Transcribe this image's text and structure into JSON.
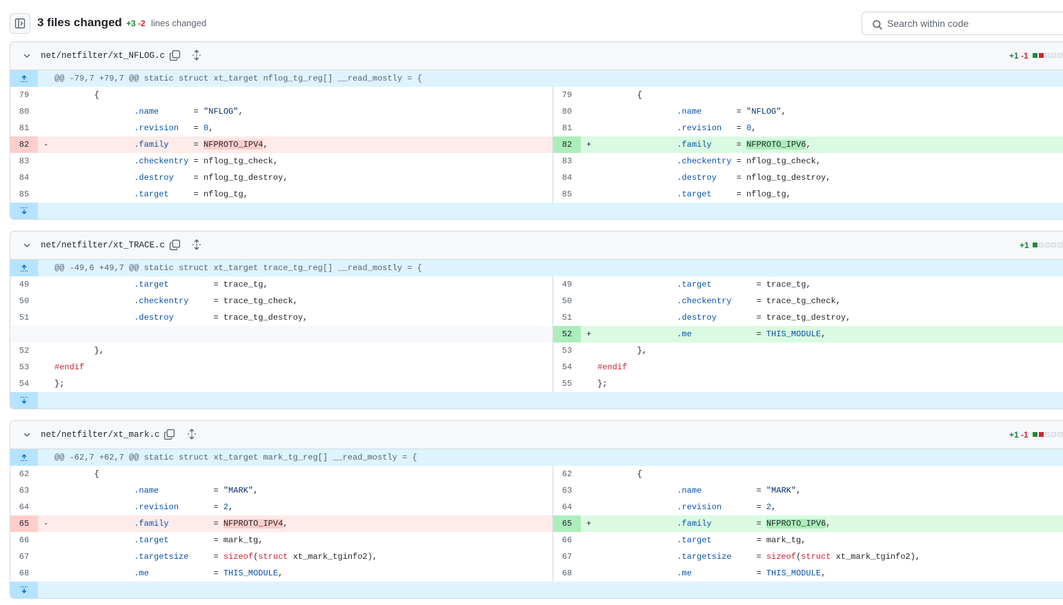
{
  "toolbar": {
    "files_changed": "3 files changed",
    "additions": "+3",
    "deletions": "-2",
    "lines_changed_label": "lines changed",
    "search_placeholder": "Search within code"
  },
  "colors": {
    "added": "#1f883d",
    "deleted": "#d1242f",
    "hunk": "#ddf4ff"
  },
  "files": [
    {
      "name": "net/netfilter/xt_NFLOG.c",
      "stat_add": "+1",
      "stat_del": "-1",
      "blocks": [
        "added",
        "deleted",
        "neutral",
        "neutral",
        "neutral"
      ],
      "hunk": "@@ -79,7 +79,7 @@ static struct xt_target nflog_tg_reg[] __read_mostly = {",
      "rows": [
        {
          "type": "ctx",
          "ln": "79",
          "rn": "79",
          "code": [
            [
              "t",
              "\t{"
            ]
          ]
        },
        {
          "type": "ctx",
          "ln": "80",
          "rn": "80",
          "code": [
            [
              "t",
              "\t\t"
            ],
            [
              "f",
              ".name"
            ],
            [
              "t",
              "       = "
            ],
            [
              "s",
              "\"NFLOG\""
            ],
            [
              "t",
              ","
            ]
          ]
        },
        {
          "type": "ctx",
          "ln": "81",
          "rn": "81",
          "code": [
            [
              "t",
              "\t\t"
            ],
            [
              "f",
              ".revision"
            ],
            [
              "t",
              "   = "
            ],
            [
              "f",
              "0"
            ],
            [
              "t",
              ","
            ]
          ]
        },
        {
          "type": "chg",
          "ln": "82",
          "rn": "82",
          "lcode": [
            [
              "t",
              "\t\t"
            ],
            [
              "f",
              ".family"
            ],
            [
              "t",
              "     = "
            ],
            [
              "hd",
              "NFPROTO_IPV4"
            ],
            [
              "t",
              ","
            ]
          ],
          "rcode": [
            [
              "t",
              "\t\t"
            ],
            [
              "f",
              ".family"
            ],
            [
              "t",
              "     = "
            ],
            [
              "ha",
              "NFPROTO_IPV6"
            ],
            [
              "t",
              ","
            ]
          ]
        },
        {
          "type": "ctx",
          "ln": "83",
          "rn": "83",
          "code": [
            [
              "t",
              "\t\t"
            ],
            [
              "f",
              ".checkentry"
            ],
            [
              "t",
              " = nflog_tg_check,"
            ]
          ]
        },
        {
          "type": "ctx",
          "ln": "84",
          "rn": "84",
          "code": [
            [
              "t",
              "\t\t"
            ],
            [
              "f",
              ".destroy"
            ],
            [
              "t",
              "    = nflog_tg_destroy,"
            ]
          ]
        },
        {
          "type": "ctx",
          "ln": "85",
          "rn": "85",
          "code": [
            [
              "t",
              "\t\t"
            ],
            [
              "f",
              ".target"
            ],
            [
              "t",
              "     = nflog_tg,"
            ]
          ]
        }
      ]
    },
    {
      "name": "net/netfilter/xt_TRACE.c",
      "stat_add": "+1",
      "stat_del": "",
      "blocks": [
        "added",
        "neutral",
        "neutral",
        "neutral",
        "neutral"
      ],
      "hunk": "@@ -49,6 +49,7 @@ static struct xt_target trace_tg_reg[] __read_mostly = {",
      "rows": [
        {
          "type": "ctx",
          "ln": "49",
          "rn": "49",
          "code": [
            [
              "t",
              "\t\t"
            ],
            [
              "f",
              ".target"
            ],
            [
              "t",
              "         = trace_tg,"
            ]
          ]
        },
        {
          "type": "ctx",
          "ln": "50",
          "rn": "50",
          "code": [
            [
              "t",
              "\t\t"
            ],
            [
              "f",
              ".checkentry"
            ],
            [
              "t",
              "     = trace_tg_check,"
            ]
          ]
        },
        {
          "type": "ctx",
          "ln": "51",
          "rn": "51",
          "code": [
            [
              "t",
              "\t\t"
            ],
            [
              "f",
              ".destroy"
            ],
            [
              "t",
              "        = trace_tg_destroy,"
            ]
          ]
        },
        {
          "type": "addonly",
          "rn": "52",
          "rcode": [
            [
              "t",
              "\t\t"
            ],
            [
              "f",
              ".me"
            ],
            [
              "t",
              "             = "
            ],
            [
              "f",
              "THIS_MODULE"
            ],
            [
              "t",
              ","
            ]
          ]
        },
        {
          "type": "ctx",
          "ln": "52",
          "rn": "53",
          "code": [
            [
              "t",
              "\t},"
            ]
          ]
        },
        {
          "type": "ctx",
          "ln": "53",
          "rn": "54",
          "code": [
            [
              "p",
              "#endif"
            ]
          ]
        },
        {
          "type": "ctx",
          "ln": "54",
          "rn": "55",
          "code": [
            [
              "t",
              "};"
            ]
          ]
        }
      ]
    },
    {
      "name": "net/netfilter/xt_mark.c",
      "stat_add": "+1",
      "stat_del": "-1",
      "blocks": [
        "added",
        "deleted",
        "neutral",
        "neutral",
        "neutral"
      ],
      "hunk": "@@ -62,7 +62,7 @@ static struct xt_target mark_tg_reg[] __read_mostly = {",
      "rows": [
        {
          "type": "ctx",
          "ln": "62",
          "rn": "62",
          "code": [
            [
              "t",
              "\t{"
            ]
          ]
        },
        {
          "type": "ctx",
          "ln": "63",
          "rn": "63",
          "code": [
            [
              "t",
              "\t\t"
            ],
            [
              "f",
              ".name"
            ],
            [
              "t",
              "           = "
            ],
            [
              "s",
              "\"MARK\""
            ],
            [
              "t",
              ","
            ]
          ]
        },
        {
          "type": "ctx",
          "ln": "64",
          "rn": "64",
          "code": [
            [
              "t",
              "\t\t"
            ],
            [
              "f",
              ".revision"
            ],
            [
              "t",
              "       = "
            ],
            [
              "f",
              "2"
            ],
            [
              "t",
              ","
            ]
          ]
        },
        {
          "type": "chg",
          "ln": "65",
          "rn": "65",
          "lcode": [
            [
              "t",
              "\t\t"
            ],
            [
              "f",
              ".family"
            ],
            [
              "t",
              "         = "
            ],
            [
              "hd",
              "NFPROTO_IPV4"
            ],
            [
              "t",
              ","
            ]
          ],
          "rcode": [
            [
              "t",
              "\t\t"
            ],
            [
              "f",
              ".family"
            ],
            [
              "t",
              "         = "
            ],
            [
              "ha",
              "NFPROTO_IPV6"
            ],
            [
              "t",
              ","
            ]
          ]
        },
        {
          "type": "ctx",
          "ln": "66",
          "rn": "66",
          "code": [
            [
              "t",
              "\t\t"
            ],
            [
              "f",
              ".target"
            ],
            [
              "t",
              "         = mark_tg,"
            ]
          ]
        },
        {
          "type": "ctx",
          "ln": "67",
          "rn": "67",
          "code": [
            [
              "t",
              "\t\t"
            ],
            [
              "f",
              ".targetsize"
            ],
            [
              "t",
              "     = "
            ],
            [
              "k",
              "sizeof"
            ],
            [
              "t",
              "("
            ],
            [
              "k",
              "struct"
            ],
            [
              "t",
              " xt_mark_tginfo2),"
            ]
          ]
        },
        {
          "type": "ctx",
          "ln": "68",
          "rn": "68",
          "code": [
            [
              "t",
              "\t\t"
            ],
            [
              "f",
              ".me"
            ],
            [
              "t",
              "             = "
            ],
            [
              "f",
              "THIS_MODULE"
            ],
            [
              "t",
              ","
            ]
          ]
        }
      ]
    }
  ]
}
